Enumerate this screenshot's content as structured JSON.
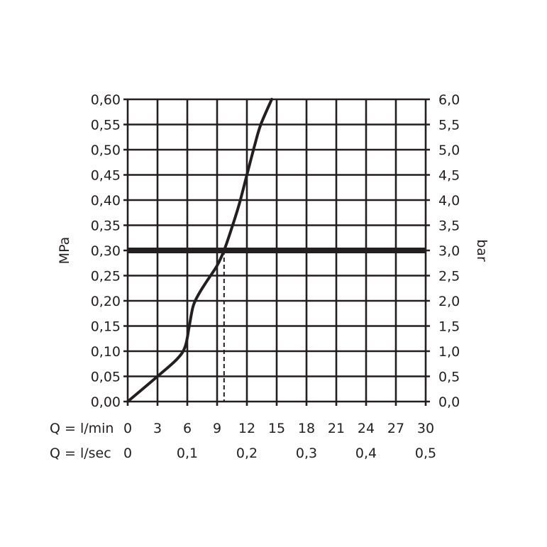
{
  "chart_data": {
    "type": "line",
    "title": "",
    "ylabel_left": "MPa",
    "ylabel_right": "bar",
    "x_label_lmin": "Q = l/min",
    "x_label_lsec": "Q = l/sec",
    "xlim": [
      0,
      30
    ],
    "ylim": [
      0,
      0.6
    ],
    "x_ticks_lmin": [
      "0",
      "3",
      "6",
      "9",
      "12",
      "15",
      "18",
      "21",
      "24",
      "27",
      "30"
    ],
    "x_ticks_lsec": [
      {
        "x": 0,
        "label": "0"
      },
      {
        "x": 6,
        "label": "0,1"
      },
      {
        "x": 12,
        "label": "0,2"
      },
      {
        "x": 18,
        "label": "0,3"
      },
      {
        "x": 24,
        "label": "0,4"
      },
      {
        "x": 30,
        "label": "0,5"
      }
    ],
    "y_ticks_mpa": [
      "0,00",
      "0,05",
      "0,10",
      "0,15",
      "0,20",
      "0,25",
      "0,30",
      "0,35",
      "0,40",
      "0,45",
      "0,50",
      "0,55",
      "0,60"
    ],
    "y_ticks_bar": [
      "0,0",
      "0,5",
      "1,0",
      "1,5",
      "2,0",
      "2,5",
      "3,0",
      "3,5",
      "4,0",
      "4,5",
      "5,0",
      "5,5",
      "6,0"
    ],
    "grid": true,
    "reference_line": {
      "y": 0.3
    },
    "operating_point": {
      "x": 9.7,
      "y": 0.3
    },
    "series": [
      {
        "x": [
          0,
          3,
          5,
          5.8,
          6.2,
          6.6,
          7.2,
          8,
          9,
          9.7,
          10.4,
          11.2,
          12,
          12.8,
          13.4,
          14.5
        ],
        "y": [
          0,
          0.05,
          0.085,
          0.11,
          0.15,
          0.19,
          0.215,
          0.24,
          0.27,
          0.3,
          0.34,
          0.39,
          0.45,
          0.51,
          0.55,
          0.6
        ]
      }
    ]
  }
}
